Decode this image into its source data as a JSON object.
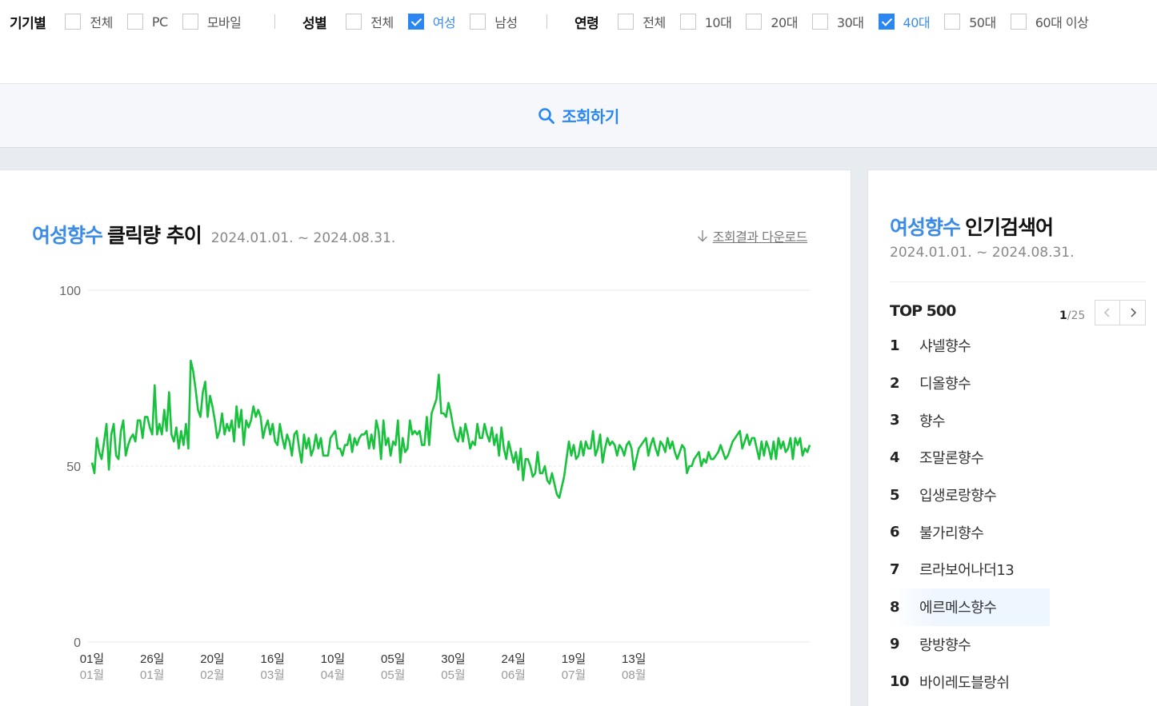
{
  "filters": {
    "device": {
      "title": "기기별",
      "options": [
        {
          "label": "전체",
          "checked": false
        },
        {
          "label": "PC",
          "checked": false
        },
        {
          "label": "모바일",
          "checked": false
        }
      ]
    },
    "gender": {
      "title": "성별",
      "options": [
        {
          "label": "전체",
          "checked": false
        },
        {
          "label": "여성",
          "checked": true
        },
        {
          "label": "남성",
          "checked": false
        }
      ]
    },
    "age": {
      "title": "연령",
      "options": [
        {
          "label": "전체",
          "checked": false
        },
        {
          "label": "10대",
          "checked": false
        },
        {
          "label": "20대",
          "checked": false
        },
        {
          "label": "30대",
          "checked": false
        },
        {
          "label": "40대",
          "checked": true
        },
        {
          "label": "50대",
          "checked": false
        },
        {
          "label": "60대 이상",
          "checked": false
        }
      ]
    }
  },
  "search_button": "조회하기",
  "chart_card": {
    "keyword": "여성향수",
    "title": "클릭량 추이",
    "range": "2024.01.01. ~ 2024.08.31.",
    "download": "조회결과 다운로드"
  },
  "rank_card": {
    "keyword": "여성향수",
    "title": "인기검색어",
    "range": "2024.01.01. ~ 2024.08.31.",
    "top_label": "TOP 500",
    "page_current": "1",
    "page_total": "/25",
    "items": [
      {
        "rank": "1",
        "label": "샤넬향수"
      },
      {
        "rank": "2",
        "label": "디올향수"
      },
      {
        "rank": "3",
        "label": "향수"
      },
      {
        "rank": "4",
        "label": "조말론향수"
      },
      {
        "rank": "5",
        "label": "입생로랑향수"
      },
      {
        "rank": "6",
        "label": "불가리향수"
      },
      {
        "rank": "7",
        "label": "르라보어나더13"
      },
      {
        "rank": "8",
        "label": "에르메스향수"
      },
      {
        "rank": "9",
        "label": "랑방향수"
      },
      {
        "rank": "10",
        "label": "바이레도블랑쉬"
      }
    ]
  },
  "colors": {
    "accent": "#3c8ce6",
    "line": "#18c23d",
    "checked": "#2a86f0"
  },
  "chart_data": {
    "type": "line",
    "title": "클릭량 추이",
    "ylim": [
      0,
      100
    ],
    "yticks": [
      0,
      50,
      100
    ],
    "xticks": [
      {
        "day": "01일",
        "month": "01월",
        "index": 0
      },
      {
        "day": "26일",
        "month": "01월",
        "index": 25
      },
      {
        "day": "20일",
        "month": "02월",
        "index": 50
      },
      {
        "day": "16일",
        "month": "03월",
        "index": 75
      },
      {
        "day": "10일",
        "month": "04월",
        "index": 100
      },
      {
        "day": "05일",
        "month": "05월",
        "index": 125
      },
      {
        "day": "30일",
        "month": "05월",
        "index": 150
      },
      {
        "day": "24일",
        "month": "06월",
        "index": 175
      },
      {
        "day": "19일",
        "month": "07월",
        "index": 200
      },
      {
        "day": "13일",
        "month": "08월",
        "index": 225
      }
    ],
    "series": [
      {
        "values": [
          51,
          48,
          58,
          54,
          52,
          57,
          62,
          49,
          59,
          62,
          53,
          52,
          60,
          63,
          53,
          56,
          58,
          59,
          57,
          63,
          63,
          58,
          64,
          64,
          61,
          59,
          73,
          59,
          62,
          59,
          66,
          60,
          71,
          59,
          57,
          61,
          55,
          60,
          56,
          62,
          55,
          80,
          77,
          72,
          66,
          64,
          71,
          74,
          64,
          70,
          67,
          63,
          58,
          60,
          65,
          59,
          62,
          60,
          63,
          57,
          67,
          61,
          66,
          56,
          63,
          61,
          63,
          67,
          64,
          66,
          64,
          58,
          61,
          63,
          59,
          62,
          57,
          56,
          62,
          58,
          55,
          59,
          57,
          53,
          59,
          60,
          55,
          51,
          59,
          55,
          58,
          53,
          55,
          59,
          55,
          58,
          53,
          53,
          53,
          58,
          59,
          60,
          55,
          55,
          53,
          56,
          56,
          59,
          54,
          58,
          56,
          58,
          59,
          59,
          60,
          55,
          59,
          55,
          63,
          60,
          52,
          63,
          56,
          58,
          53,
          57,
          56,
          63,
          51,
          58,
          54,
          55,
          63,
          59,
          60,
          59,
          60,
          56,
          56,
          64,
          56,
          65,
          67,
          69,
          76,
          65,
          65,
          64,
          68,
          65,
          61,
          58,
          57,
          61,
          57,
          62,
          59,
          55,
          57,
          56,
          62,
          58,
          58,
          62,
          59,
          57,
          61,
          56,
          59,
          53,
          61,
          55,
          52,
          57,
          54,
          51,
          54,
          49,
          55,
          46,
          52,
          52,
          50,
          47,
          48,
          54,
          48,
          48,
          50,
          46,
          45,
          48,
          45,
          42,
          41,
          44,
          47,
          52,
          57,
          53,
          56,
          52,
          53,
          57,
          53,
          57,
          55,
          55,
          60,
          53,
          55,
          59,
          51,
          55,
          58,
          56,
          57,
          56,
          53,
          56,
          55,
          53,
          56,
          57,
          55,
          49,
          52,
          55,
          56,
          57,
          58,
          53,
          56,
          58,
          55,
          53,
          57,
          56,
          54,
          58,
          55,
          57,
          54,
          52,
          54,
          56,
          55,
          48,
          50,
          50,
          52,
          53,
          54,
          50,
          52,
          51,
          54,
          52,
          52,
          53,
          54,
          56,
          54,
          52,
          53,
          55,
          57,
          58,
          59,
          60,
          55,
          57,
          59,
          56,
          58,
          58,
          55,
          52,
          57,
          53,
          57,
          55,
          52,
          57,
          52,
          58,
          55,
          57,
          54,
          55,
          58,
          52,
          58,
          56,
          58,
          53,
          55,
          54,
          56
        ]
      }
    ]
  }
}
